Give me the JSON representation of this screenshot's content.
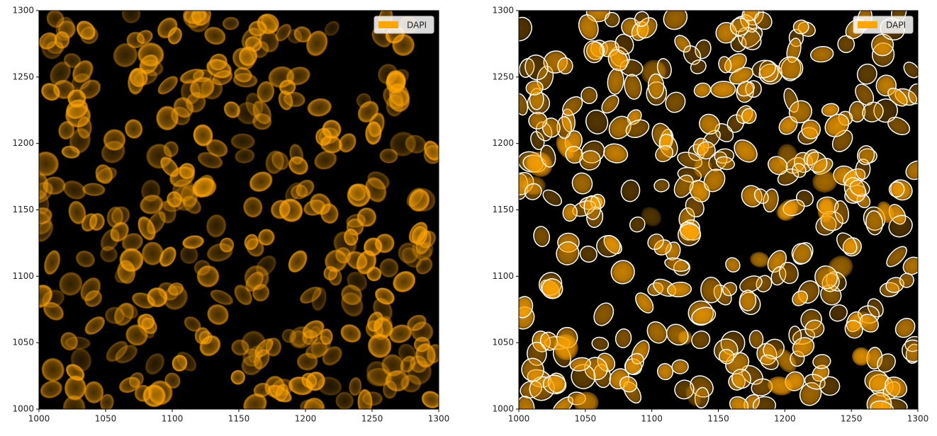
{
  "chart_data": [
    {
      "type": "image",
      "series": [
        {
          "name": "DAPI",
          "color": "#ffa500"
        }
      ],
      "legend": "upper right",
      "xlim": [
        1000,
        1300
      ],
      "ylim": [
        1000,
        1300
      ],
      "xticks": [
        1000,
        1050,
        1100,
        1150,
        1200,
        1250,
        1300
      ],
      "yticks": [
        1000,
        1050,
        1100,
        1150,
        1200,
        1250,
        1300
      ]
    },
    {
      "type": "image",
      "series": [
        {
          "name": "DAPI",
          "color": "#ffa500"
        }
      ],
      "legend": "upper right",
      "outlines": "#ffffff",
      "xlim": [
        1000,
        1300
      ],
      "ylim": [
        1000,
        1300
      ],
      "xticks": [
        1000,
        1050,
        1100,
        1150,
        1200,
        1250,
        1300
      ],
      "yticks": [
        1000,
        1050,
        1100,
        1150,
        1200,
        1250,
        1300
      ]
    }
  ]
}
